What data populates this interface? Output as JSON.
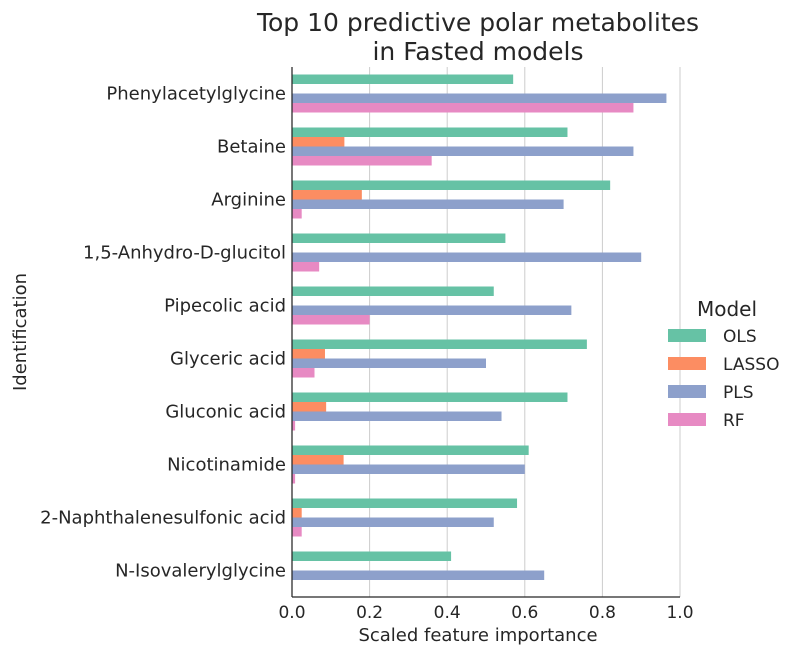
{
  "chart_data": {
    "type": "bar",
    "orientation": "horizontal",
    "title": "Top 10 predictive polar metabolites\nin Fasted models",
    "xlabel": "Scaled feature importance",
    "ylabel": "Identification",
    "xlim": [
      0.0,
      1.0
    ],
    "xticks": [
      0.0,
      0.2,
      0.4,
      0.6,
      0.8,
      1.0
    ],
    "xtick_labels": [
      "0.0",
      "0.2",
      "0.4",
      "0.6",
      "0.8",
      "1.0"
    ],
    "grid": "vertical",
    "legend": {
      "title": "Model",
      "position": "center-right"
    },
    "categories": [
      "Phenylacetylglycine",
      "Betaine",
      "Arginine",
      "1,5-Anhydro-D-glucitol",
      "Pipecolic acid",
      "Glyceric acid",
      "Gluconic acid",
      "Nicotinamide",
      "2-Naphthalenesulfonic acid",
      "N-Isovalerylglycine"
    ],
    "series": [
      {
        "name": "OLS",
        "color": "#66c2a5",
        "values": [
          0.57,
          0.71,
          0.82,
          0.55,
          0.52,
          0.76,
          0.71,
          0.61,
          0.58,
          0.41
        ]
      },
      {
        "name": "LASSO",
        "color": "#fc8d62",
        "values": [
          0.0,
          0.135,
          0.18,
          0.0,
          0.0,
          0.085,
          0.088,
          0.133,
          0.025,
          0.0
        ]
      },
      {
        "name": "PLS",
        "color": "#8da0cb",
        "values": [
          0.965,
          0.88,
          0.7,
          0.9,
          0.72,
          0.5,
          0.54,
          0.6,
          0.52,
          0.65
        ]
      },
      {
        "name": "RF",
        "color": "#e78ac3",
        "values": [
          0.88,
          0.36,
          0.025,
          0.07,
          0.2,
          0.058,
          0.008,
          0.008,
          0.025,
          0.0
        ]
      }
    ]
  }
}
